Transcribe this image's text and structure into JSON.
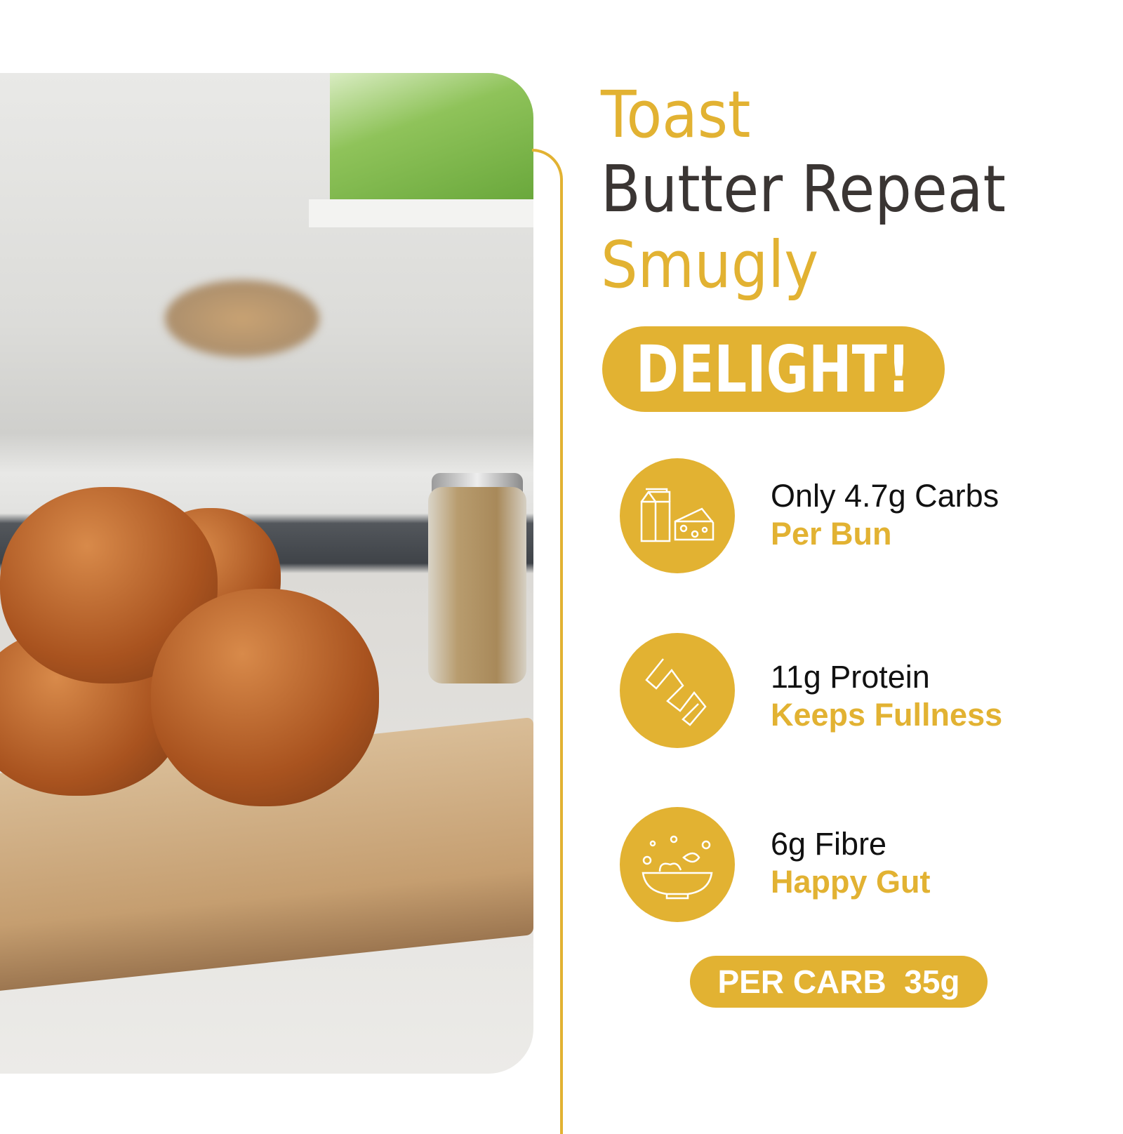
{
  "headline": {
    "line1": "Toast",
    "line2": "Butter Repeat",
    "line3": "Smugly",
    "badge": "DELIGHT!"
  },
  "features": [
    {
      "icon": "milk-cheese-icon",
      "title": "Only 4.7g Carbs",
      "subtitle": "Per Bun"
    },
    {
      "icon": "protein-ribbon-icon",
      "title": "11g Protein",
      "subtitle": "Keeps Fullness"
    },
    {
      "icon": "salad-bowl-icon",
      "title": "6g Fibre",
      "subtitle": "Happy Gut"
    }
  ],
  "footer_badge": "PER CARB  35g",
  "colors": {
    "accent": "#e2b232",
    "dark": "#3a3533"
  }
}
